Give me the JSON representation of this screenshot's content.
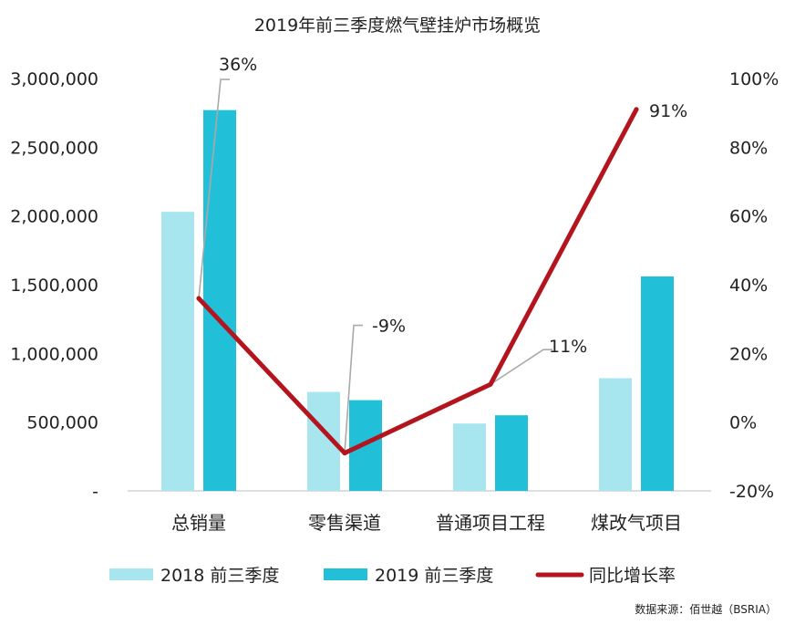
{
  "chart_data": {
    "type": "bar",
    "title": "2019年前三季度燃气壁挂炉市场概览",
    "categories": [
      "总销量",
      "零售渠道",
      "普通项目工程",
      "煤改气项目"
    ],
    "series": [
      {
        "name": "2018 前三季度",
        "type": "bar",
        "axis": "left",
        "color": "#a8e6ef",
        "values": [
          2030000,
          720000,
          490000,
          820000
        ]
      },
      {
        "name": "2019 前三季度",
        "type": "bar",
        "axis": "left",
        "color": "#22c0d8",
        "values": [
          2770000,
          660000,
          550000,
          1560000
        ]
      },
      {
        "name": "同比增长率",
        "type": "line",
        "axis": "right",
        "color": "#b4141e",
        "values": [
          36,
          -9,
          11,
          91
        ]
      }
    ],
    "annotations": [
      "36%",
      "-9%",
      "11%",
      "91%"
    ],
    "y_left": {
      "ylim": [
        0,
        3000000
      ],
      "ticks": [
        0,
        500000,
        1000000,
        1500000,
        2000000,
        2500000,
        3000000
      ],
      "tick_labels": [
        "-",
        "500,000",
        "1,000,000",
        "1,500,000",
        "2,000,000",
        "2,500,000",
        "3,000,000"
      ]
    },
    "y_right": {
      "ylim": [
        -20,
        100
      ],
      "ticks": [
        -20,
        0,
        20,
        40,
        60,
        80,
        100
      ],
      "tick_labels": [
        "-20%",
        "0%",
        "20%",
        "40%",
        "60%",
        "80%",
        "100%"
      ]
    },
    "grid": false,
    "legend_position": "bottom"
  },
  "source_note": "数据来源：佰世越（BSRIA）"
}
